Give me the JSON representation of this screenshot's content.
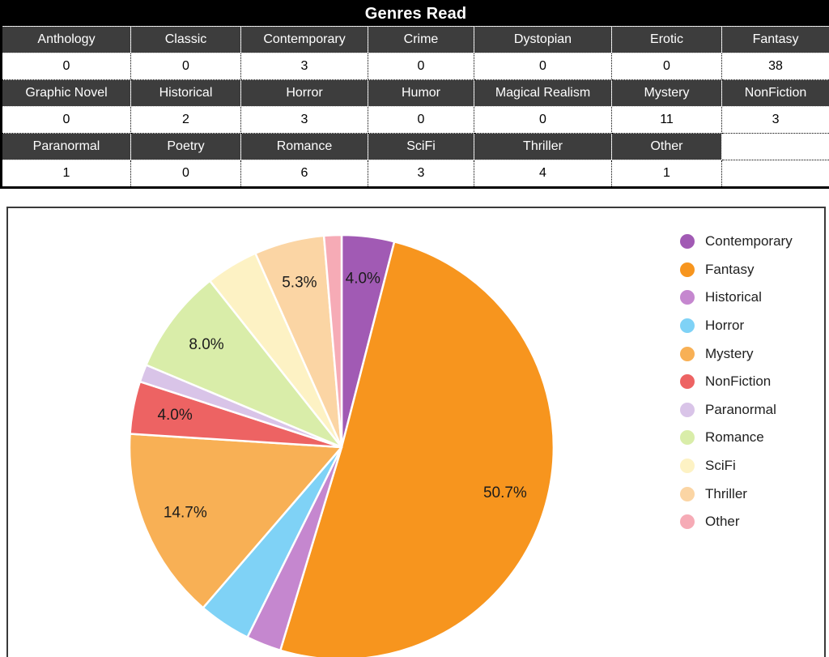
{
  "table": {
    "title": "Genres Read",
    "rows": [
      {
        "type": "header",
        "cells": [
          "Anthology",
          "Classic",
          "Contemporary",
          "Crime",
          "Dystopian",
          "Erotic",
          "Fantasy"
        ]
      },
      {
        "type": "value",
        "cells": [
          "0",
          "0",
          "3",
          "0",
          "0",
          "0",
          "38"
        ]
      },
      {
        "type": "header",
        "cells": [
          "Graphic Novel",
          "Historical",
          "Horror",
          "Humor",
          "Magical Realism",
          "Mystery",
          "NonFiction"
        ]
      },
      {
        "type": "value",
        "cells": [
          "0",
          "2",
          "3",
          "0",
          "0",
          "11",
          "3"
        ]
      },
      {
        "type": "header",
        "cells": [
          "Paranormal",
          "Poetry",
          "Romance",
          "SciFi",
          "Thriller",
          "Other",
          ""
        ]
      },
      {
        "type": "value",
        "cells": [
          "1",
          "0",
          "6",
          "3",
          "4",
          "1",
          ""
        ]
      }
    ],
    "style": {
      "title_bg": "#000000",
      "title_color": "#ffffff",
      "header_bg": "#3d3d3d",
      "header_color": "#ffffff",
      "value_bg": "#ffffff",
      "value_color": "#000000"
    }
  },
  "chart_data": {
    "type": "pie",
    "title": "",
    "legend_position": "right",
    "start_angle_deg": 0,
    "direction": "clockwise",
    "total": 75,
    "slices": [
      {
        "label": "Contemporary",
        "value": 3,
        "pct_label": "4.0%",
        "color": "#a15ab4"
      },
      {
        "label": "Fantasy",
        "value": 38,
        "pct_label": "50.7%",
        "color": "#f7951e"
      },
      {
        "label": "Historical",
        "value": 2,
        "pct_label": "",
        "color": "#c587cf"
      },
      {
        "label": "Horror",
        "value": 3,
        "pct_label": "",
        "color": "#7fd2f6"
      },
      {
        "label": "Mystery",
        "value": 11,
        "pct_label": "14.7%",
        "color": "#f8b055"
      },
      {
        "label": "NonFiction",
        "value": 3,
        "pct_label": "4.0%",
        "color": "#ed6363"
      },
      {
        "label": "Paranormal",
        "value": 1,
        "pct_label": "",
        "color": "#d9c4e8"
      },
      {
        "label": "Romance",
        "value": 6,
        "pct_label": "8.0%",
        "color": "#d9eda9"
      },
      {
        "label": "SciFi",
        "value": 3,
        "pct_label": "",
        "color": "#fdf2c4"
      },
      {
        "label": "Thriller",
        "value": 4,
        "pct_label": "5.3%",
        "color": "#fbd5a4"
      },
      {
        "label": "Other",
        "value": 1,
        "pct_label": "",
        "color": "#f6abb6"
      }
    ],
    "label_color": "#1c1c1c",
    "legend_text_color": "#212121"
  }
}
